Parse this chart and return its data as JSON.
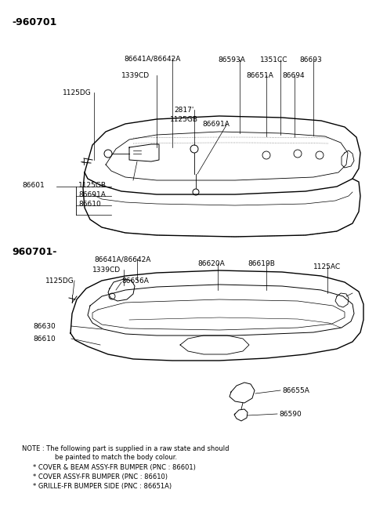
{
  "background_color": "#ffffff",
  "fig_width": 4.8,
  "fig_height": 6.57,
  "dpi": 100,
  "section1_label": "-960701",
  "section2_label": "960701-",
  "note_text": "NOTE : The following part is supplied in a raw state and should\n         be painted to match the body colour.\n  * COVER & BEAM ASSY-FR BUMPER (PNC : 86601)\n  * COVER ASSY-FR BUMPER (PNC : 86610)\n  * GRILLE-FR BUMPER SIDE (PNC : 86651A)"
}
